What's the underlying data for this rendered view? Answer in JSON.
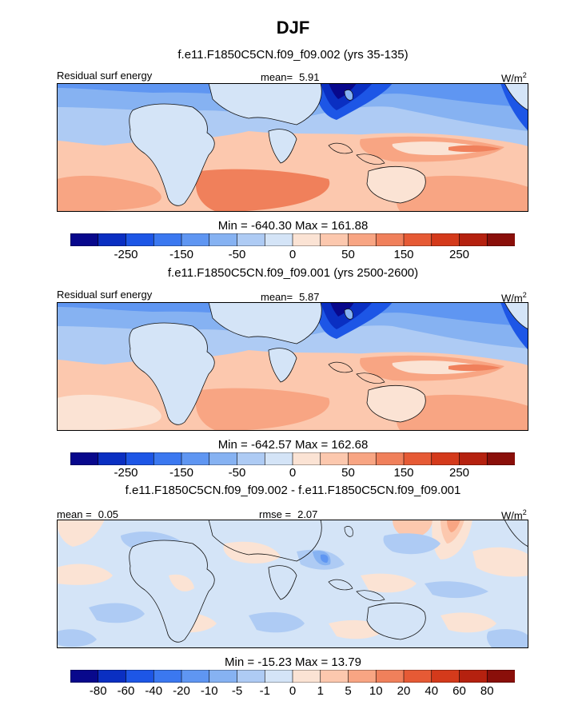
{
  "page": {
    "title": "DJF",
    "panels": [
      {
        "subtitle": "f.e11.F1850C5CN.f09_f09.002 (yrs 35-135)",
        "left_label": "Residual surf energy",
        "center_label": "mean=",
        "center_value": "5.91",
        "units": "W/m",
        "units_sup": "2",
        "minmax": "Min = -640.30 Max = 161.88",
        "colorbar_ticks": [
          "-250",
          "-150",
          "-50",
          "0",
          "50",
          "150",
          "250"
        ],
        "colors": [
          "#08088c",
          "#0a2fc2",
          "#1d56e6",
          "#3b78f0",
          "#5f96f2",
          "#86b2f2",
          "#aecbf4",
          "#d4e4f7",
          "#fbe3d4",
          "#fcc8ae",
          "#f8a583",
          "#f0805b",
          "#e65a35",
          "#d43a1b",
          "#b5210f",
          "#8a0f0a"
        ]
      },
      {
        "subtitle": "f.e11.F1850C5CN.f09_f09.001 (yrs 2500-2600)",
        "left_label": "Residual surf energy",
        "center_label": "mean=",
        "center_value": "5.87",
        "units": "W/m",
        "units_sup": "2",
        "minmax": "Min = -642.57 Max = 162.68",
        "colorbar_ticks": [
          "-250",
          "-150",
          "-50",
          "0",
          "50",
          "150",
          "250"
        ],
        "colors": [
          "#08088c",
          "#0a2fc2",
          "#1d56e6",
          "#3b78f0",
          "#5f96f2",
          "#86b2f2",
          "#aecbf4",
          "#d4e4f7",
          "#fbe3d4",
          "#fcc8ae",
          "#f8a583",
          "#f0805b",
          "#e65a35",
          "#d43a1b",
          "#b5210f",
          "#8a0f0a"
        ]
      },
      {
        "subtitle": "f.e11.F1850C5CN.f09_f09.002 - f.e11.F1850C5CN.f09_f09.001",
        "left_label": "mean =",
        "left_value": "0.05",
        "center_label": "rmse =",
        "center_value": "2.07",
        "units": "W/m",
        "units_sup": "2",
        "minmax": "Min = -15.23 Max =  13.79",
        "colorbar_ticks": [
          "-80",
          "-60",
          "-40",
          "-20",
          "-10",
          "-5",
          "-1",
          "0",
          "1",
          "5",
          "10",
          "20",
          "40",
          "60",
          "80"
        ],
        "colors": [
          "#08088c",
          "#0a2fc2",
          "#1d56e6",
          "#3b78f0",
          "#5f96f2",
          "#86b2f2",
          "#aecbf4",
          "#d4e4f7",
          "#fbe3d4",
          "#fcc8ae",
          "#f8a583",
          "#f0805b",
          "#e65a35",
          "#d43a1b",
          "#b5210f",
          "#8a0f0a"
        ]
      }
    ]
  }
}
